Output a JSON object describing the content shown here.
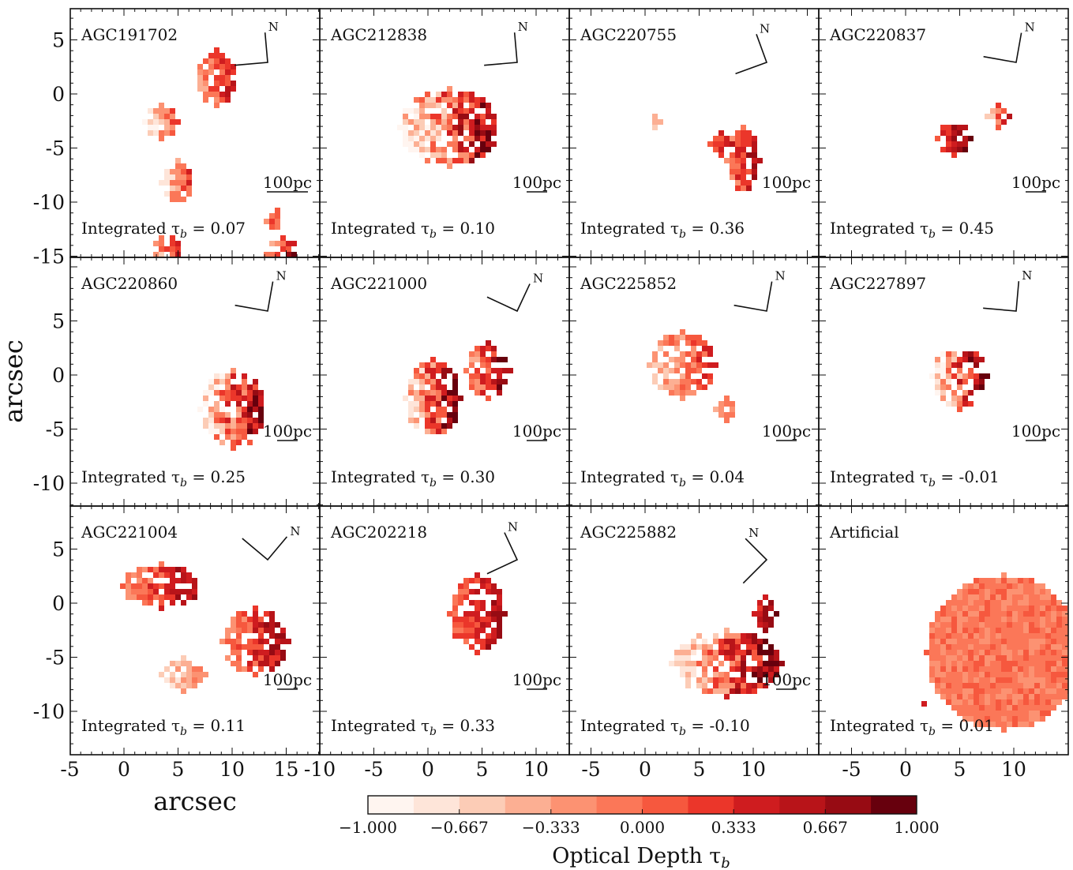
{
  "figure": {
    "axis_label": "arcsec",
    "colorbar_label": "Optical Depth τ",
    "colorbar_label_sub": "b",
    "integrated_prefix": "Integrated τ",
    "integrated_sub": "b",
    "scale_bar_label": "100pc",
    "compass_label": "N"
  },
  "chart_data": {
    "type": "heatmap",
    "layout": "3x4 grid of image panels sharing axes",
    "colormap": "Reds",
    "colorbar": {
      "range": [
        -1.0,
        1.0
      ],
      "n_bins": 12,
      "tick_labels": [
        "−1.000",
        "−0.667",
        "−0.333",
        "0.000",
        "0.333",
        "0.667",
        "1.000"
      ],
      "tick_values": [
        -1.0,
        -0.667,
        -0.333,
        0.0,
        0.333,
        0.667,
        1.0
      ],
      "colors": [
        "#fff5f0",
        "#fee5d9",
        "#fcccb6",
        "#fcaf93",
        "#fc9272",
        "#fb7758",
        "#f6583e",
        "#eb362a",
        "#cf1c1f",
        "#b81419",
        "#970b13",
        "#67000d"
      ]
    },
    "xlabel": "arcsec",
    "ylabel": "arcsec",
    "x_ticks": [
      {
        "col": 0,
        "labels": [
          "-5",
          "0",
          "5",
          "10",
          "15"
        ],
        "values": [
          -5,
          0,
          5,
          10,
          15
        ],
        "xlim": [
          -5,
          18
        ]
      },
      {
        "col": 1,
        "labels": [
          "-10",
          "-5",
          "0",
          "5",
          "10"
        ],
        "values": [
          -10,
          -5,
          0,
          5,
          10
        ],
        "xlim": [
          -10,
          13
        ]
      },
      {
        "col": 2,
        "labels": [
          "-5",
          "0",
          "5",
          "10"
        ],
        "values": [
          -5,
          0,
          5,
          10
        ],
        "xlim": [
          -5,
          18
        ]
      },
      {
        "col": 3,
        "labels": [
          "-5",
          "0",
          "5",
          "10"
        ],
        "values": [
          -5,
          0,
          5,
          10
        ],
        "xlim": [
          -5,
          15
        ]
      }
    ],
    "y_ticks": [
      {
        "row": 0,
        "labels": [
          "5",
          "0",
          "-5",
          "-10",
          "-15"
        ],
        "values": [
          5,
          0,
          -5,
          -10,
          -15
        ],
        "ylim": [
          -15,
          8
        ]
      },
      {
        "row": 1,
        "labels": [
          "5",
          "0",
          "-5",
          "-10"
        ],
        "values": [
          5,
          0,
          -5,
          -10
        ],
        "ylim": [
          -12,
          11
        ]
      },
      {
        "row": 2,
        "labels": [
          "5",
          "0",
          "-5",
          "-10"
        ],
        "values": [
          5,
          0,
          -5,
          -10
        ],
        "ylim": [
          -14,
          9
        ]
      }
    ],
    "panels": [
      {
        "name": "AGC191702",
        "integrated_tau_b": "0.07"
      },
      {
        "name": "AGC212838",
        "integrated_tau_b": "0.10"
      },
      {
        "name": "AGC220755",
        "integrated_tau_b": "0.36"
      },
      {
        "name": "AGC220837",
        "integrated_tau_b": "0.45"
      },
      {
        "name": "AGC220860",
        "integrated_tau_b": "0.25"
      },
      {
        "name": "AGC221000",
        "integrated_tau_b": "0.30"
      },
      {
        "name": "AGC225852",
        "integrated_tau_b": "0.04"
      },
      {
        "name": "AGC227897",
        "integrated_tau_b": "-0.01"
      },
      {
        "name": "AGC221004",
        "integrated_tau_b": "0.11"
      },
      {
        "name": "AGC202218",
        "integrated_tau_b": "0.33"
      },
      {
        "name": "AGC225882",
        "integrated_tau_b": "-0.10"
      },
      {
        "name": "Artificial",
        "integrated_tau_b": "0.01"
      }
    ]
  }
}
